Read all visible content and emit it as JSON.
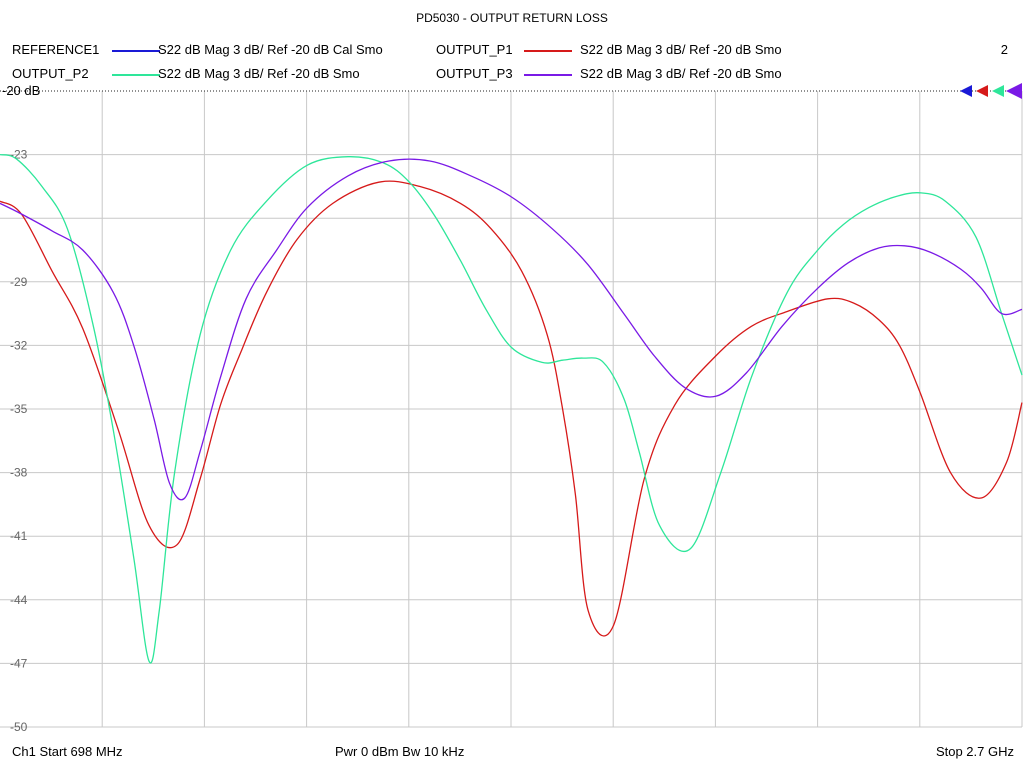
{
  "title": "PD5030 - OUTPUT RETURN LOSS",
  "channel_number": "2",
  "legend": [
    {
      "name": "REFERENCE1",
      "desc": "S22  dB Mag  3 dB/ Ref -20 dB  Cal Smo",
      "color": "#1a1ad6"
    },
    {
      "name": "OUTPUT_P1",
      "desc": "S22  dB Mag  3 dB/ Ref -20 dB  Smo",
      "color": "#d61a1a"
    },
    {
      "name": "OUTPUT_P2",
      "desc": "S22  dB Mag  3 dB/ Ref -20 dB  Smo",
      "color": "#2ee69a"
    },
    {
      "name": "OUTPUT_P3",
      "desc": "S22  dB Mag  3 dB/ Ref -20 dB  Smo",
      "color": "#7a1ae6"
    }
  ],
  "footer": {
    "start": "Ch1  Start  698 MHz",
    "center": "Pwr  0 dBm  Bw  10 kHz",
    "stop": "Stop  2.7 GHz"
  },
  "chart_data": {
    "type": "line",
    "title": "PD5030 - OUTPUT RETURN LOSS",
    "xlabel": "",
    "ylabel": "",
    "x_unit": "MHz",
    "xlim": [
      698,
      2700
    ],
    "ylim": [
      -50,
      -20
    ],
    "y_tick_labels": [
      "-20 dB",
      "-23",
      "",
      "-29",
      "-32",
      "-35",
      "-38",
      "-41",
      "-44",
      "-47",
      "-50"
    ],
    "y_ticks": [
      -20,
      -23,
      -26,
      -29,
      -32,
      -35,
      -38,
      -41,
      -44,
      -47,
      -50
    ],
    "grid": true,
    "reference_level": -20,
    "series": [
      {
        "name": "OUTPUT_P1",
        "color": "#d61a1a",
        "x": [
          698,
          740,
          800,
          860,
          930,
          990,
          1045,
          1090,
          1130,
          1170,
          1220,
          1280,
          1350,
          1440,
          1520,
          1600,
          1660,
          1720,
          1770,
          1800,
          1825,
          1850,
          1900,
          1960,
          2020,
          2100,
          2170,
          2240,
          2320,
          2370,
          2420,
          2460,
          2500,
          2560,
          2620,
          2670,
          2700
        ],
        "values": [
          -25.2,
          -25.8,
          -28.5,
          -31.2,
          -36.0,
          -40.5,
          -41.4,
          -38.3,
          -34.8,
          -32.3,
          -29.5,
          -27.0,
          -25.3,
          -24.3,
          -24.5,
          -25.3,
          -26.5,
          -28.5,
          -31.5,
          -35.0,
          -39.0,
          -44.5,
          -45.2,
          -38.3,
          -34.8,
          -32.5,
          -31.1,
          -30.4,
          -29.8,
          -30.0,
          -30.8,
          -32.0,
          -34.2,
          -38.0,
          -39.2,
          -37.5,
          -34.7
        ]
      },
      {
        "name": "OUTPUT_P2",
        "color": "#2ee69a",
        "x": [
          698,
          730,
          780,
          830,
          880,
          920,
          960,
          990,
          1010,
          1040,
          1090,
          1150,
          1220,
          1300,
          1380,
          1450,
          1500,
          1550,
          1600,
          1650,
          1700,
          1760,
          1800,
          1840,
          1880,
          1920,
          1950,
          1990,
          2050,
          2110,
          2170,
          2240,
          2300,
          2350,
          2400,
          2450,
          2500,
          2550,
          2610,
          2660,
          2700
        ],
        "values": [
          -23.0,
          -23.2,
          -24.5,
          -26.5,
          -31.0,
          -36.0,
          -42.0,
          -46.9,
          -44.5,
          -38.0,
          -31.5,
          -27.5,
          -25.2,
          -23.5,
          -23.1,
          -23.4,
          -24.3,
          -25.9,
          -28.0,
          -30.3,
          -32.1,
          -32.8,
          -32.7,
          -32.6,
          -32.8,
          -34.5,
          -37.0,
          -40.5,
          -41.6,
          -38.0,
          -33.5,
          -29.5,
          -27.5,
          -26.3,
          -25.5,
          -25.0,
          -24.8,
          -25.2,
          -26.9,
          -30.5,
          -33.4
        ]
      },
      {
        "name": "OUTPUT_P3",
        "color": "#7a1ae6",
        "x": [
          698,
          740,
          800,
          860,
          920,
          960,
          1000,
          1030,
          1060,
          1090,
          1130,
          1180,
          1240,
          1300,
          1380,
          1460,
          1540,
          1620,
          1700,
          1780,
          1850,
          1920,
          1980,
          2040,
          2100,
          2160,
          2230,
          2300,
          2360,
          2420,
          2470,
          2520,
          2580,
          2620,
          2660,
          2700
        ],
        "values": [
          -25.3,
          -25.8,
          -26.6,
          -27.5,
          -29.5,
          -32.0,
          -35.5,
          -38.5,
          -39.2,
          -37.0,
          -33.5,
          -29.8,
          -27.5,
          -25.5,
          -24.0,
          -23.3,
          -23.3,
          -24.0,
          -25.0,
          -26.5,
          -28.2,
          -30.5,
          -32.5,
          -34.0,
          -34.4,
          -33.3,
          -31.1,
          -29.3,
          -28.1,
          -27.4,
          -27.3,
          -27.6,
          -28.4,
          -29.3,
          -30.5,
          -30.3
        ]
      }
    ]
  }
}
